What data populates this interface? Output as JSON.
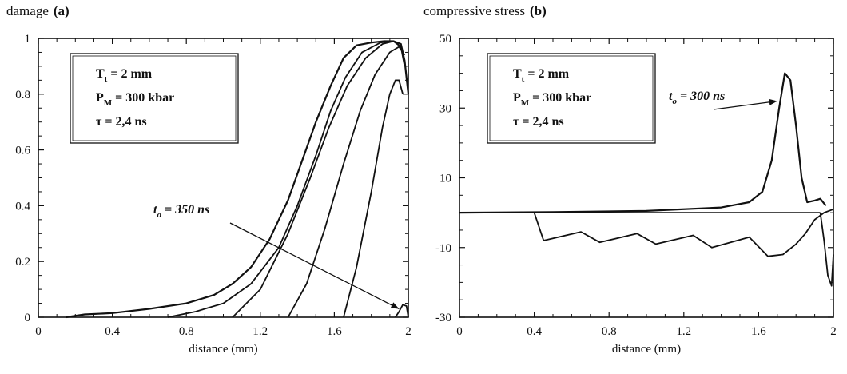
{
  "chart_data": [
    {
      "type": "line",
      "title": "damage",
      "tag": "(a)",
      "xlabel": "distance (mm)",
      "ylabel": "",
      "xlim": [
        0,
        2
      ],
      "ylim": [
        0,
        1
      ],
      "xticks": [
        0,
        0.4,
        0.8,
        1.2,
        1.6,
        2
      ],
      "xtick_labels": [
        "0",
        "0.4",
        "0.8",
        "1.2",
        "1.6",
        "2"
      ],
      "yticks": [
        0,
        0.2,
        0.4,
        0.6,
        0.8,
        1
      ],
      "ytick_labels": [
        "0",
        "0.2",
        "0.4",
        "0.6",
        "0.8",
        "1"
      ],
      "grid": false,
      "legend_box": [
        "T_t = 2 mm",
        "P_M = 300 kbar",
        "τ = 2,4 ns"
      ],
      "legend_box_parts": [
        {
          "sym": "T",
          "sub": "t",
          "rest": " = 2 mm"
        },
        {
          "sym": "P",
          "sub": "M",
          "rest": " = 300 kbar"
        },
        {
          "sym": "τ",
          "sub": "",
          "rest": "  = 2,4 ns"
        }
      ],
      "legend_position": "top-left",
      "annotation": {
        "sym": "t",
        "sub": "o",
        "rest": " = 350 ns",
        "point": [
          1.95,
          0.03
        ]
      },
      "series": [
        {
          "x": [
            0.15,
            0.25,
            0.4,
            0.6,
            0.8,
            0.95,
            1.05,
            1.15,
            1.25,
            1.35,
            1.42,
            1.5,
            1.58,
            1.65,
            1.72,
            1.8,
            1.87,
            1.92,
            1.96,
            1.98,
            2.0
          ],
          "y": [
            0,
            0.01,
            0.015,
            0.03,
            0.05,
            0.08,
            0.12,
            0.18,
            0.28,
            0.42,
            0.55,
            0.7,
            0.83,
            0.93,
            0.975,
            0.985,
            0.99,
            0.99,
            0.98,
            0.92,
            0.8
          ]
        },
        {
          "x": [
            0.7,
            0.85,
            1.0,
            1.15,
            1.3,
            1.4,
            1.5,
            1.58,
            1.66,
            1.75,
            1.85,
            1.92,
            1.96,
            1.98
          ],
          "y": [
            0,
            0.02,
            0.05,
            0.12,
            0.25,
            0.4,
            0.58,
            0.74,
            0.86,
            0.95,
            0.985,
            0.99,
            0.97,
            0.9
          ]
        },
        {
          "x": [
            1.05,
            1.2,
            1.35,
            1.47,
            1.57,
            1.67,
            1.77,
            1.86,
            1.92,
            1.96
          ],
          "y": [
            0,
            0.1,
            0.3,
            0.5,
            0.68,
            0.83,
            0.93,
            0.98,
            0.99,
            0.97
          ]
        },
        {
          "x": [
            1.35,
            1.45,
            1.55,
            1.65,
            1.74,
            1.82,
            1.9,
            1.95,
            1.98
          ],
          "y": [
            0,
            0.12,
            0.32,
            0.55,
            0.74,
            0.87,
            0.95,
            0.97,
            0.94
          ]
        },
        {
          "x": [
            1.65,
            1.72,
            1.8,
            1.86,
            1.9,
            1.93,
            1.95,
            1.97
          ],
          "y": [
            0,
            0.18,
            0.45,
            0.68,
            0.8,
            0.85,
            0.85,
            0.8
          ]
        },
        {
          "x": [
            1.93,
            1.95,
            1.97,
            1.99,
            2.0
          ],
          "y": [
            0,
            0.02,
            0.045,
            0.04,
            0
          ]
        }
      ]
    },
    {
      "type": "line",
      "title": "compressive stress",
      "tag": "(b)",
      "xlabel": "distance (mm)",
      "ylabel": "",
      "xlim": [
        0,
        2
      ],
      "ylim": [
        -30,
        50
      ],
      "xticks": [
        0,
        0.4,
        0.8,
        1.2,
        1.6,
        2
      ],
      "xtick_labels": [
        "0",
        "0.4",
        "0.8",
        "1.2",
        "1.6",
        "2"
      ],
      "yticks": [
        -30,
        -10,
        10,
        30,
        50
      ],
      "ytick_labels": [
        "-30",
        "-10",
        "10",
        "30",
        "50"
      ],
      "grid": false,
      "legend_box": [
        "T_t = 2 mm",
        "P_M = 300 kbar",
        "τ = 2,4 ns"
      ],
      "legend_box_parts": [
        {
          "sym": "T",
          "sub": "t",
          "rest": " = 2 mm"
        },
        {
          "sym": "P",
          "sub": "M",
          "rest": " = 300 kbar"
        },
        {
          "sym": "τ",
          "sub": "",
          "rest": "  = 2,4 ns"
        }
      ],
      "legend_position": "top-left",
      "annotation": {
        "sym": "t",
        "sub": "o",
        "rest": " = 300 ns",
        "point": [
          1.7,
          32
        ]
      },
      "series": [
        {
          "x": [
            0,
            0.5,
            1.0,
            1.4,
            1.55,
            1.62,
            1.67,
            1.71,
            1.74,
            1.77,
            1.8,
            1.83,
            1.86,
            1.9,
            1.93,
            1.96
          ],
          "y": [
            0,
            0.2,
            0.5,
            1.5,
            3,
            6,
            15,
            30,
            40,
            38,
            25,
            10,
            3,
            3.5,
            4,
            2
          ]
        },
        {
          "x": [
            0,
            0.4,
            0.45,
            0.65,
            0.75,
            0.95,
            1.05,
            1.25,
            1.35,
            1.55,
            1.65,
            1.73,
            1.8,
            1.85,
            1.9,
            1.95,
            2.0
          ],
          "y": [
            0,
            0,
            -8,
            -5.5,
            -8.5,
            -6,
            -9,
            -6.5,
            -10,
            -7,
            -12.5,
            -12,
            -9,
            -6,
            -2,
            0,
            1
          ]
        },
        {
          "x": [
            0.4,
            0.75,
            1.05,
            1.35,
            1.65,
            1.93
          ],
          "y": [
            0,
            0,
            0,
            0,
            0,
            0
          ]
        },
        {
          "x": [
            1.93,
            1.95,
            1.97,
            1.99,
            2.0
          ],
          "y": [
            0,
            -8,
            -18,
            -21,
            -12
          ]
        }
      ]
    }
  ]
}
